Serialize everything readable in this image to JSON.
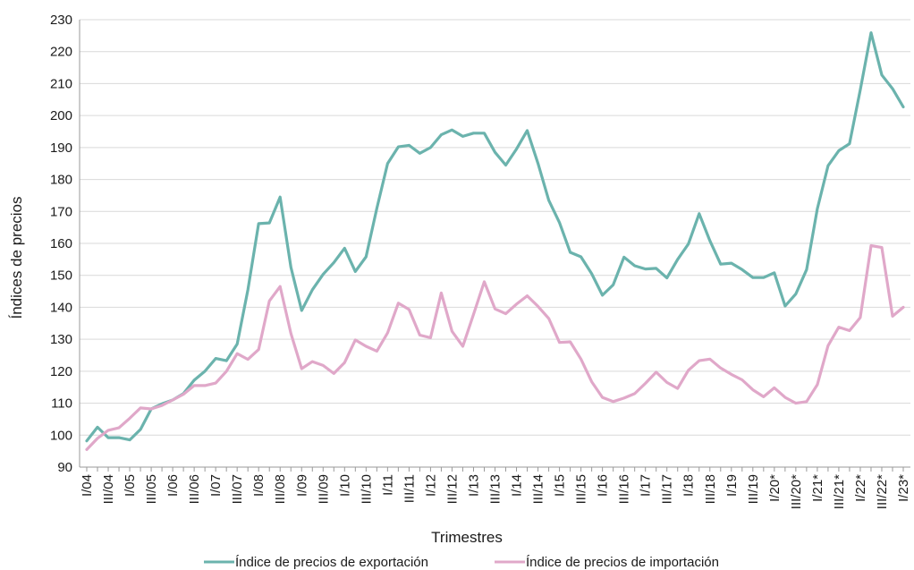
{
  "chart_data": {
    "type": "line",
    "title": "",
    "xlabel": "Trimestres",
    "ylabel": "Índices de precios",
    "ylim": [
      90,
      230
    ],
    "yticks": [
      90,
      100,
      110,
      120,
      130,
      140,
      150,
      160,
      170,
      180,
      190,
      200,
      210,
      220,
      230
    ],
    "grid": "horizontal",
    "legend": "bottom",
    "categories": [
      "I/04",
      "II/04",
      "III/04",
      "IV/04",
      "I/05",
      "II/05",
      "III/05",
      "IV/05",
      "I/06",
      "II/06",
      "III/06",
      "IV/06",
      "I/07",
      "II/07",
      "III/07",
      "IV/07",
      "I/08",
      "II/08",
      "III/08",
      "IV/08",
      "I/09",
      "II/09",
      "III/09",
      "IV/09",
      "I/10",
      "II/10",
      "III/10",
      "IV/10",
      "I/11",
      "II/11",
      "III/11",
      "IV/11",
      "I/12",
      "II/12",
      "III/12",
      "IV/12",
      "I/13",
      "II/13",
      "III/13",
      "IV/13",
      "I/14",
      "II/14",
      "III/14",
      "IV/14",
      "I/15",
      "II/15",
      "III/15",
      "IV/15",
      "I/16",
      "II/16",
      "III/16",
      "IV/16",
      "I/17",
      "II/17",
      "III/17",
      "IV/17",
      "I/18",
      "II/18",
      "III/18",
      "IV/18",
      "I/19",
      "II/19",
      "III/19",
      "IV/19",
      "I/20*",
      "II/20*",
      "III/20*",
      "IV/20*",
      "I/21*",
      "II/21*",
      "III/21*",
      "IV/21*",
      "I/22*",
      "II/22*",
      "III/22*",
      "IV/22*",
      "I/23*"
    ],
    "tick_labels": [
      "I/04",
      "III/04",
      "I/05",
      "III/05",
      "I/06",
      "III/06",
      "I/07",
      "III/07",
      "I/08",
      "III/08",
      "I/09",
      "III/09",
      "I/10",
      "III/10",
      "I/11",
      "III/11",
      "I/12",
      "III/12",
      "I/13",
      "III/13",
      "I/14",
      "III/14",
      "I/15",
      "III/15",
      "I/16",
      "III/16",
      "I/17",
      "III/17",
      "I/18",
      "III/18",
      "I/19",
      "III/19",
      "I/20*",
      "III/20*",
      "I/21*",
      "III/21*",
      "I/22*",
      "III/22*",
      "I/23*"
    ],
    "series": [
      {
        "name": "Índice de precios de exportación",
        "color": "#6bb3ad",
        "values": [
          98.2,
          102.5,
          99.2,
          99.2,
          98.5,
          101.8,
          108.2,
          109.8,
          111.0,
          113.0,
          117.2,
          120.0,
          124.0,
          123.3,
          128.5,
          145.5,
          166.2,
          166.4,
          174.5,
          152.5,
          139.0,
          145.5,
          150.3,
          154.0,
          158.5,
          151.2,
          155.8,
          171.0,
          185.0,
          190.2,
          190.7,
          188.2,
          190.0,
          194.0,
          195.5,
          193.5,
          194.5,
          194.5,
          188.5,
          184.5,
          189.5,
          195.3,
          185.0,
          173.5,
          166.5,
          157.2,
          155.8,
          150.5,
          143.8,
          147.0,
          155.7,
          153.0,
          152.0,
          152.2,
          149.2,
          155.0,
          159.8,
          169.3,
          160.8,
          153.5,
          153.8,
          151.8,
          149.3,
          149.3,
          150.8,
          140.4,
          144.2,
          151.8,
          170.8,
          184.3,
          189.0,
          191.2,
          208.0,
          225.9,
          212.7,
          208.4,
          202.7
        ]
      },
      {
        "name": "Índice de precios de importación",
        "color": "#e0a8c9",
        "values": [
          95.5,
          99.0,
          101.5,
          102.3,
          105.3,
          108.5,
          108.2,
          109.3,
          111.0,
          112.8,
          115.5,
          115.5,
          116.3,
          120.0,
          125.5,
          123.7,
          126.8,
          142.0,
          146.5,
          131.8,
          120.8,
          123.0,
          121.8,
          119.3,
          122.7,
          129.8,
          127.8,
          126.3,
          132.0,
          141.3,
          139.3,
          131.3,
          130.5,
          144.5,
          132.5,
          127.8,
          137.8,
          148.0,
          139.5,
          138.0,
          141.0,
          143.6,
          140.3,
          136.5,
          129.0,
          129.2,
          123.8,
          116.7,
          111.8,
          110.5,
          111.6,
          113.0,
          116.2,
          119.7,
          116.5,
          114.6,
          120.3,
          123.3,
          123.8,
          121.0,
          119.0,
          117.3,
          114.2,
          112.0,
          114.8,
          111.8,
          110.0,
          110.5,
          115.8,
          128.0,
          133.8,
          132.7,
          136.8,
          159.3,
          158.7,
          137.2,
          140.0
        ]
      }
    ]
  }
}
